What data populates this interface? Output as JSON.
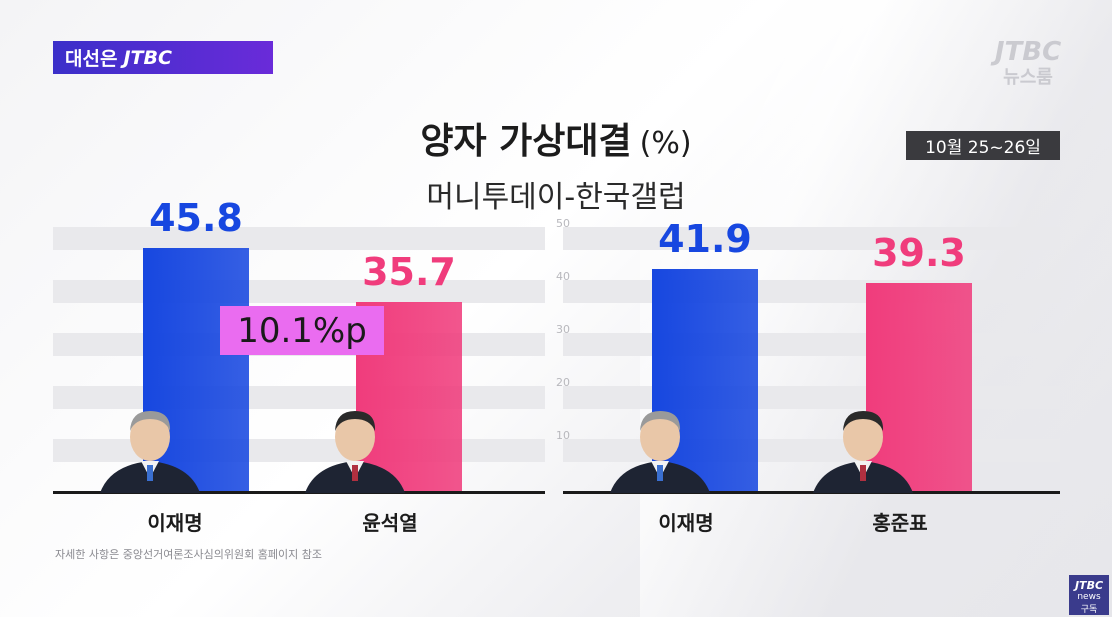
{
  "header": {
    "program": "대선은",
    "brand": "JTBC",
    "watermark_brand": "JTBC",
    "watermark_sub": "뉴스룸"
  },
  "chart_data": [
    {
      "type": "bar",
      "title": "양자 가상대결",
      "unit": "(%)",
      "subtitle": "머니투데이-한국갤럽",
      "date": "10월 25~26일",
      "categories": [
        "이재명",
        "윤석열"
      ],
      "values": [
        45.8,
        35.7
      ],
      "value_labels": [
        "45.8",
        "35.7"
      ],
      "colors": [
        "#1747e0",
        "#f03c7c"
      ],
      "ylim": [
        0,
        50
      ],
      "annotation": "10.1%p"
    },
    {
      "type": "bar",
      "categories": [
        "이재명",
        "홍준표"
      ],
      "values": [
        41.9,
        39.3
      ],
      "value_labels": [
        "41.9",
        "39.3"
      ],
      "colors": [
        "#1747e0",
        "#f03c7c"
      ],
      "ylim": [
        0,
        50
      ],
      "yticks": [
        "10",
        "20",
        "30",
        "40",
        "50"
      ]
    }
  ],
  "footer": {
    "note": "자세한 사항은 중앙선거여론조사심의위원회 홈페이지 참조",
    "subscribe_brand": "JTBC",
    "subscribe_sub": "news",
    "subscribe_label": "구독"
  }
}
